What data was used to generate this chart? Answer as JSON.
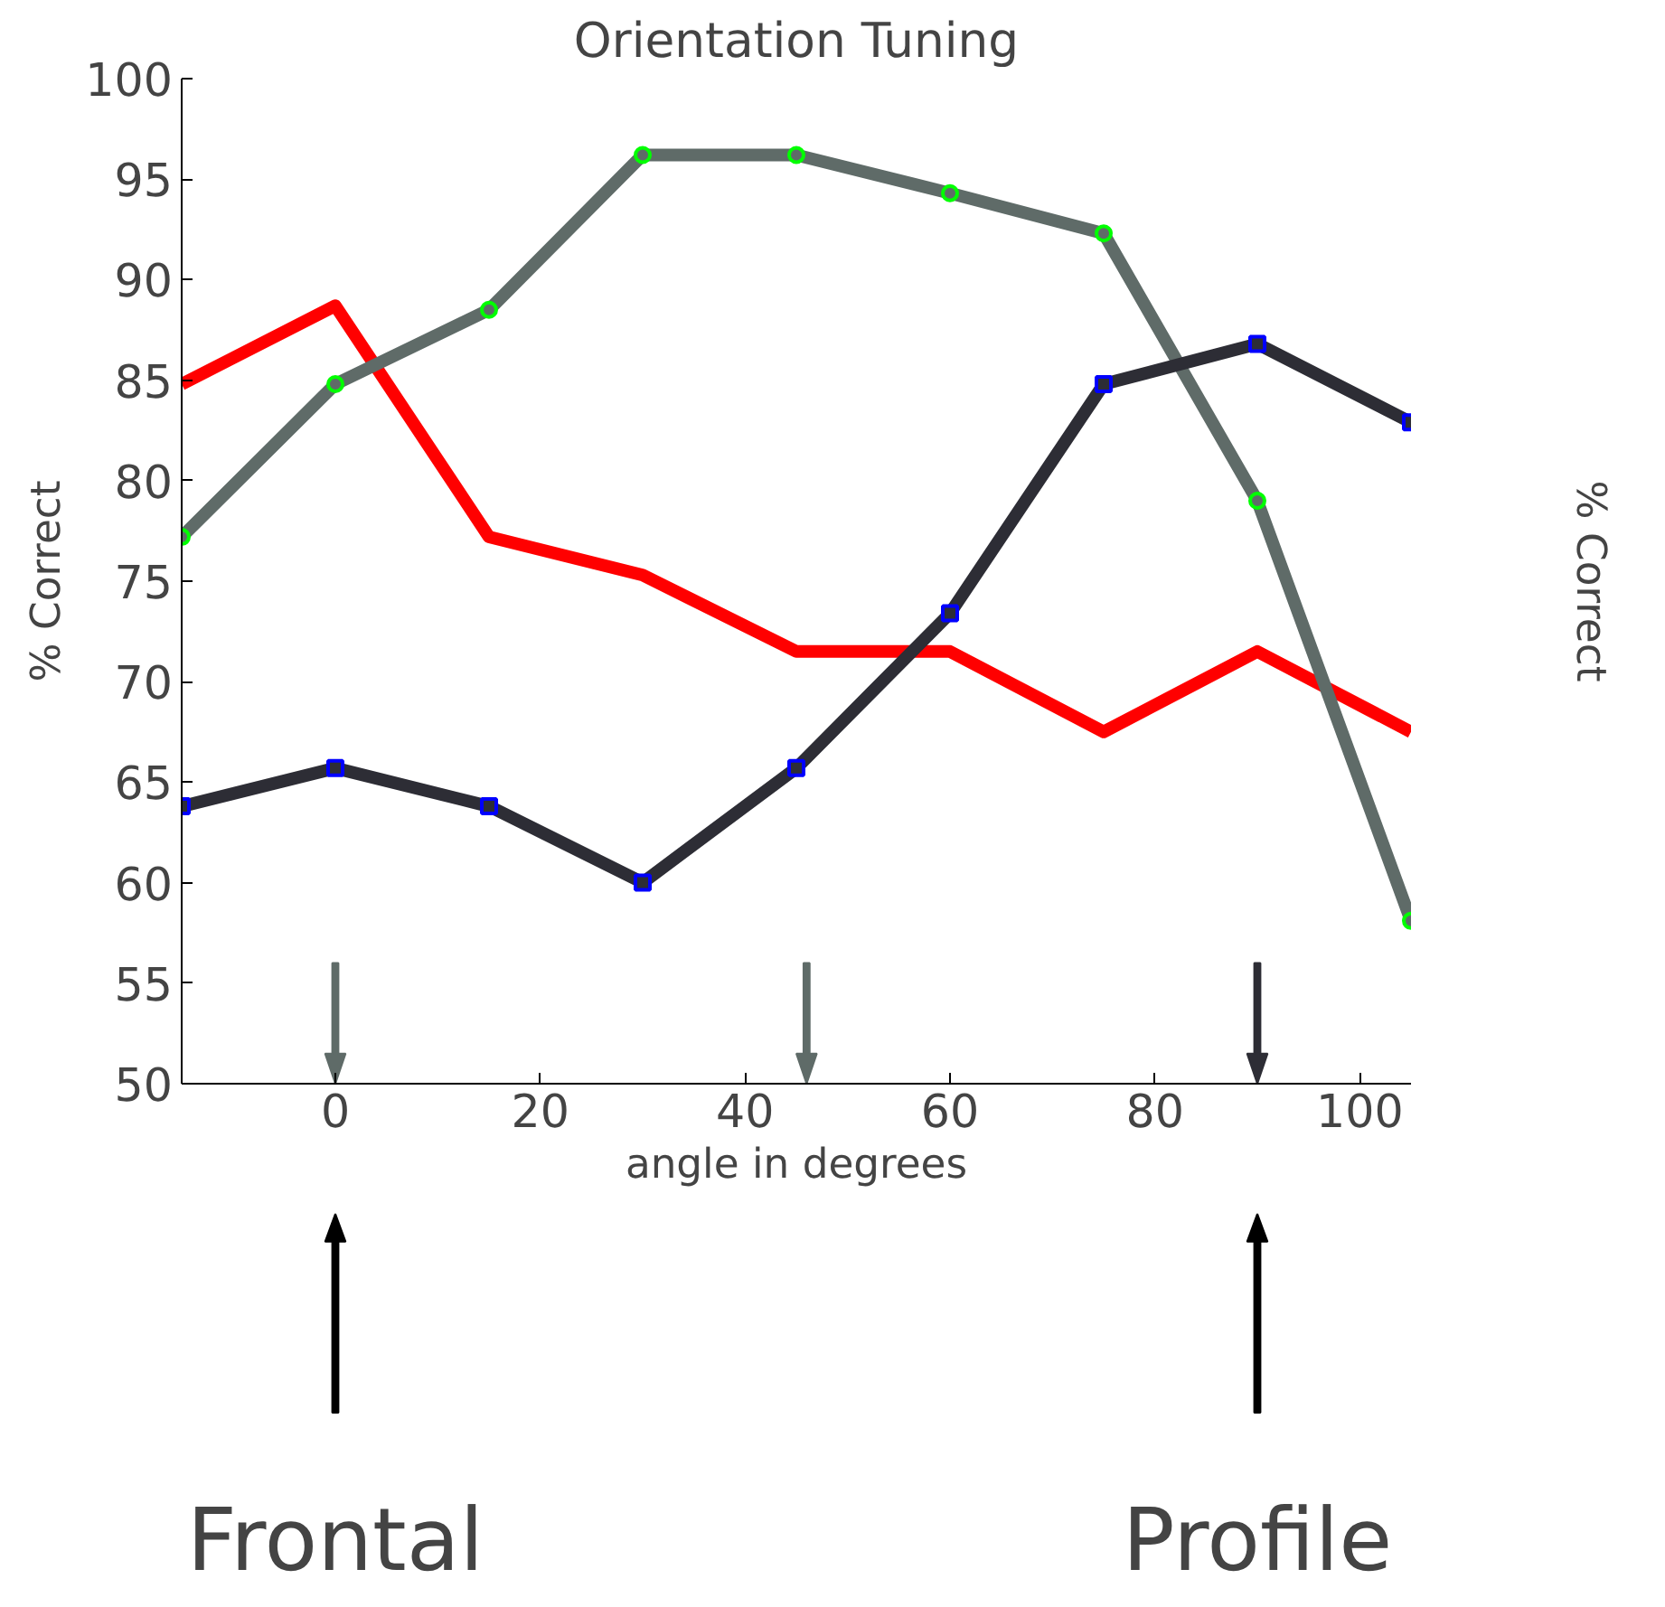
{
  "chart_data": {
    "type": "line",
    "title": "Orientation Tuning",
    "xlabel": "angle in degrees",
    "ylabel": "% Correct",
    "y2label": "% Correct",
    "x": [
      -15,
      0,
      15,
      30,
      45,
      60,
      75,
      90,
      105
    ],
    "series": [
      {
        "color": "#ff0000",
        "values": [
          84.8,
          88.7,
          77.2,
          75.3,
          71.5,
          71.5,
          67.5,
          71.5,
          67.5
        ],
        "marker": "none"
      },
      {
        "color": "#5f6b68",
        "values": [
          77.2,
          84.8,
          88.5,
          96.2,
          96.2,
          94.3,
          92.3,
          79,
          58.1
        ],
        "marker": "circle"
      },
      {
        "color": "#2d2d35",
        "values": [
          63.8,
          65.7,
          63.8,
          60,
          65.7,
          73.4,
          84.8,
          86.8,
          82.9
        ],
        "marker": "square"
      }
    ],
    "xlim": [
      -15,
      105
    ],
    "xticks": [
      0,
      20,
      40,
      60,
      80,
      100
    ],
    "ylim": [
      50,
      100
    ],
    "yticks": [
      50,
      55,
      60,
      65,
      70,
      75,
      80,
      85,
      90,
      95,
      100
    ],
    "grid": false,
    "line_style": "solid",
    "ref_lines": [
      {
        "axis": "x",
        "value": 0,
        "color": "#5f6b68"
      },
      {
        "axis": "x",
        "value": 46,
        "color": "#5f6b68"
      },
      {
        "axis": "x",
        "value": 90,
        "color": "#2d2d35"
      },
      {
        "axis": "x",
        "value": 0,
        "color": "#000000",
        "label": "Frontal"
      },
      {
        "axis": "x",
        "value": 90,
        "color": "#000000",
        "label": "Profile"
      }
    ]
  }
}
